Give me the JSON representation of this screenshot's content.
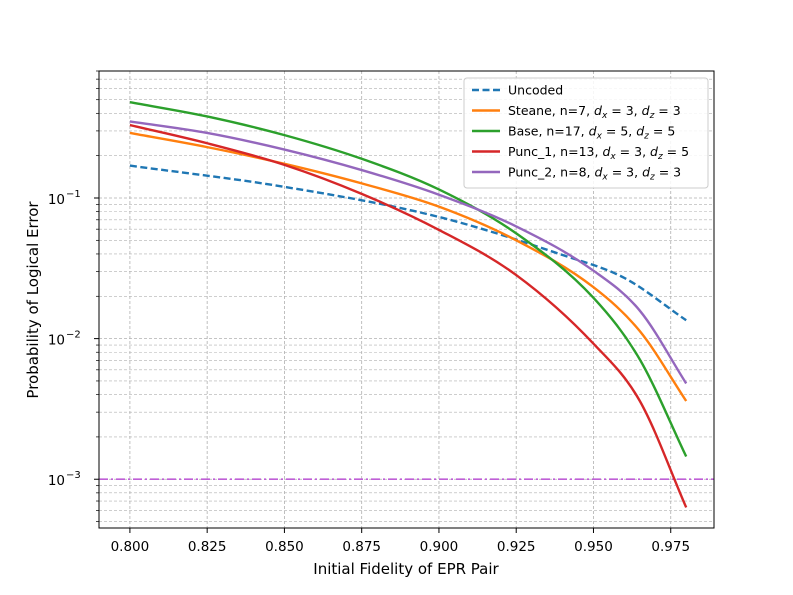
{
  "chart_data": {
    "type": "line",
    "xlabel": "Initial Fidelity of EPR Pair",
    "ylabel": "Probability of Logical Error",
    "xlim": [
      0.79,
      0.989
    ],
    "ylim": [
      0.00045,
      0.8
    ],
    "yscale": "log",
    "grid": "both (major and minor, dashed)",
    "legend_position": "top-right",
    "x_ticks": [
      {
        "value": 0.8,
        "label": "0.800"
      },
      {
        "value": 0.825,
        "label": "0.825"
      },
      {
        "value": 0.85,
        "label": "0.850"
      },
      {
        "value": 0.875,
        "label": "0.875"
      },
      {
        "value": 0.9,
        "label": "0.900"
      },
      {
        "value": 0.925,
        "label": "0.925"
      },
      {
        "value": 0.95,
        "label": "0.950"
      },
      {
        "value": 0.975,
        "label": "0.975"
      }
    ],
    "y_ticks": [
      {
        "value": 0.001,
        "base": "10",
        "exp": "−3"
      },
      {
        "value": 0.01,
        "base": "10",
        "exp": "−2"
      },
      {
        "value": 0.1,
        "base": "10",
        "exp": "−1"
      }
    ],
    "threshold_line": {
      "y": 0.001,
      "color": "#bf5fd6",
      "style": "dashdot"
    },
    "series": [
      {
        "name": "Uncoded",
        "legend_parts": [
          {
            "t": "Uncoded",
            "i": false
          }
        ],
        "color": "#1f77b4",
        "dash": "dashed",
        "x": [
          0.8,
          0.85,
          0.9,
          0.94,
          0.96,
          0.98
        ],
        "y": [
          0.17,
          0.12,
          0.0733,
          0.0393,
          0.027,
          0.0135
        ]
      },
      {
        "name": "Steane, n=7, dx = 3, dz = 3",
        "legend_parts": [
          {
            "t": "Steane, n=7, ",
            "i": false
          },
          {
            "t": "d",
            "i": true
          },
          {
            "t": "x",
            "i": true,
            "sub": true
          },
          {
            "t": " = 3, ",
            "i": false
          },
          {
            "t": "d",
            "i": true
          },
          {
            "t": "z",
            "i": true,
            "sub": true
          },
          {
            "t": " = 3",
            "i": false
          }
        ],
        "color": "#ff7f0e",
        "dash": "solid",
        "x": [
          0.8,
          0.825,
          0.85,
          0.875,
          0.9,
          0.925,
          0.95,
          0.965,
          0.98
        ],
        "y": [
          0.29,
          0.23,
          0.175,
          0.127,
          0.0868,
          0.05,
          0.0232,
          0.0113,
          0.0036
        ]
      },
      {
        "name": "Base, n=17, dx = 5, dz = 5",
        "legend_parts": [
          {
            "t": "Base, n=17, ",
            "i": false
          },
          {
            "t": "d",
            "i": true
          },
          {
            "t": "x",
            "i": true,
            "sub": true
          },
          {
            "t": " = 5, ",
            "i": false
          },
          {
            "t": "d",
            "i": true
          },
          {
            "t": "z",
            "i": true,
            "sub": true
          },
          {
            "t": " = 5",
            "i": false
          }
        ],
        "color": "#2ca02c",
        "dash": "solid",
        "x": [
          0.8,
          0.825,
          0.85,
          0.875,
          0.9,
          0.925,
          0.95,
          0.965,
          0.98
        ],
        "y": [
          0.48,
          0.38,
          0.28,
          0.19,
          0.115,
          0.056,
          0.0195,
          0.0071,
          0.00145
        ]
      },
      {
        "name": "Punc_1, n=13, dx = 3, dz = 5",
        "legend_parts": [
          {
            "t": "Punc_1, n=13, ",
            "i": false
          },
          {
            "t": "d",
            "i": true
          },
          {
            "t": "x",
            "i": true,
            "sub": true
          },
          {
            "t": " = 3, ",
            "i": false
          },
          {
            "t": "d",
            "i": true
          },
          {
            "t": "z",
            "i": true,
            "sub": true
          },
          {
            "t": " = 5",
            "i": false
          }
        ],
        "color": "#d62728",
        "dash": "solid",
        "x": [
          0.8,
          0.825,
          0.85,
          0.875,
          0.9,
          0.925,
          0.95,
          0.965,
          0.98
        ],
        "y": [
          0.33,
          0.245,
          0.172,
          0.107,
          0.0593,
          0.0283,
          0.0092,
          0.0036,
          0.00063
        ]
      },
      {
        "name": "Punc_2, n=8, dx = 3, dz = 3",
        "legend_parts": [
          {
            "t": "Punc_2, n=8, ",
            "i": false
          },
          {
            "t": "d",
            "i": true
          },
          {
            "t": "x",
            "i": true,
            "sub": true
          },
          {
            "t": " = 3, ",
            "i": false
          },
          {
            "t": "d",
            "i": true
          },
          {
            "t": "z",
            "i": true,
            "sub": true
          },
          {
            "t": " = 3",
            "i": false
          }
        ],
        "color": "#9467bd",
        "dash": "solid",
        "x": [
          0.8,
          0.825,
          0.85,
          0.875,
          0.9,
          0.925,
          0.95,
          0.965,
          0.98
        ],
        "y": [
          0.35,
          0.29,
          0.221,
          0.158,
          0.1055,
          0.0628,
          0.0304,
          0.0158,
          0.0048
        ]
      }
    ]
  }
}
